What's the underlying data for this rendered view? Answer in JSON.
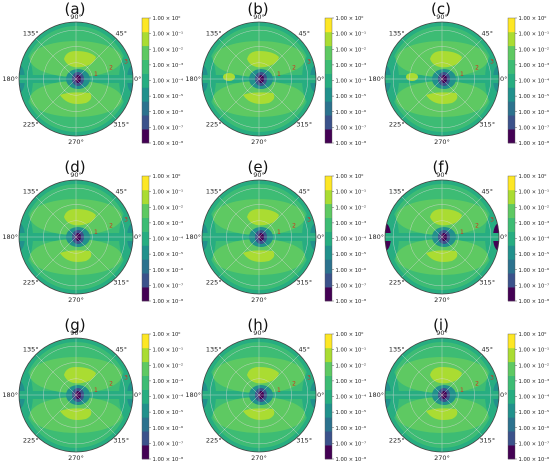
{
  "chart_data": {
    "type": "heatmap",
    "projection": "polar",
    "panels": [
      "(a)",
      "(b)",
      "(c)",
      "(d)",
      "(e)",
      "(f)",
      "(g)",
      "(h)",
      "(i)"
    ],
    "angle_ticks": [
      "90°",
      "45°",
      "0°",
      "315°",
      "270°",
      "225°",
      "180°",
      "135°"
    ],
    "angle_values": [
      90,
      45,
      0,
      315,
      270,
      225,
      180,
      135
    ],
    "radial_ticks": [
      "1",
      "2",
      "3"
    ],
    "radial_values": [
      1,
      2,
      3
    ],
    "rmax": 3.5,
    "colorbar": {
      "scale": "log",
      "tick_labels": [
        "1.00 × 10⁰",
        "1.00 × 10⁻¹",
        "1.00 × 10⁻²",
        "1.00 × 10⁻³",
        "1.00 × 10⁻⁴",
        "1.00 × 10⁻⁵",
        "1.00 × 10⁻⁶",
        "1.00 × 10⁻⁷",
        "1.00 × 10⁻⁸"
      ],
      "exponents": [
        0,
        -1,
        -2,
        -3,
        -4,
        -5,
        -6,
        -7,
        -8
      ],
      "colors": [
        "#440154",
        "#3b528b",
        "#2c728e",
        "#21918c",
        "#27ad81",
        "#3dbc74",
        "#5ec962",
        "#aadc32",
        "#fde725"
      ]
    }
  }
}
